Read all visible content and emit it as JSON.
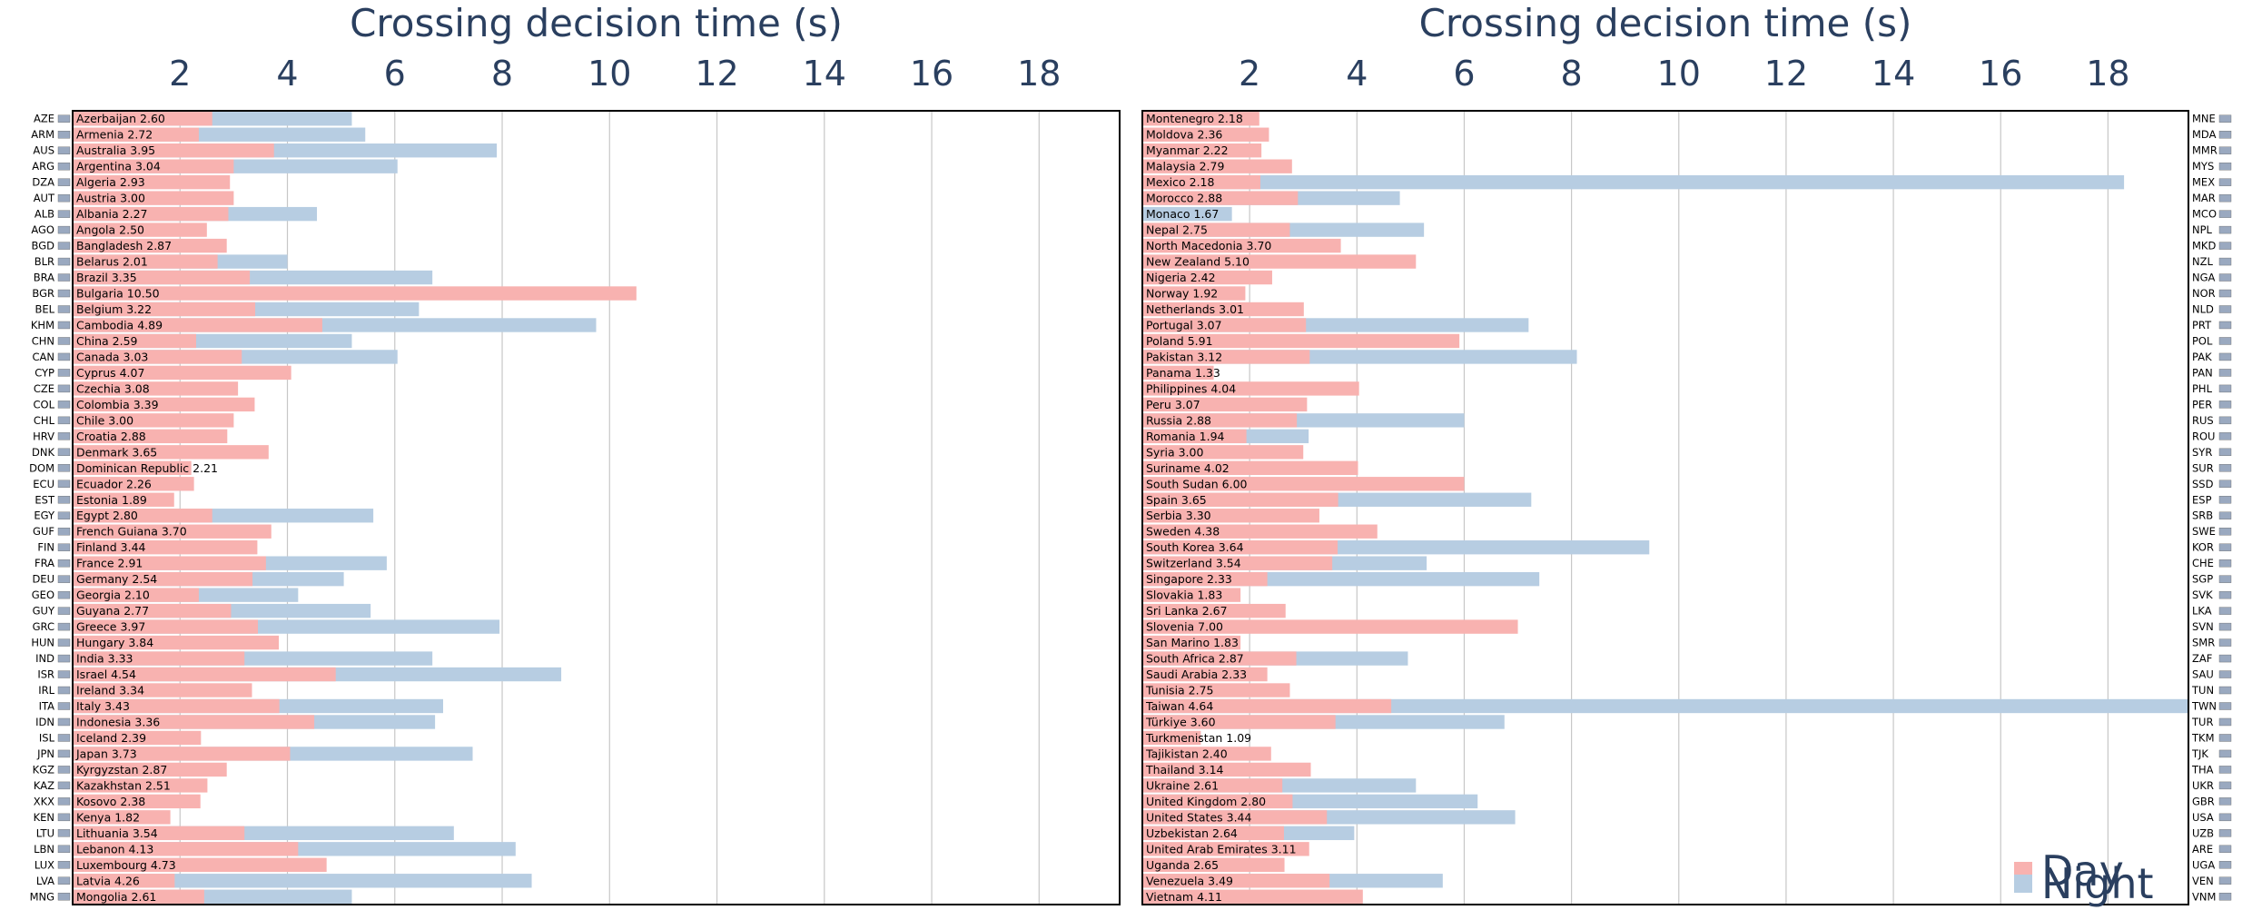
{
  "chart_data": [
    {
      "type": "bar",
      "orientation": "horizontal",
      "title": "Crossing decision time (s)",
      "xlim": [
        0,
        19.5
      ],
      "xticks": [
        2,
        4,
        6,
        8,
        10,
        12,
        14,
        16,
        18
      ],
      "grid": true,
      "side_labels": "left",
      "series_names": [
        "Day",
        "Night"
      ],
      "rows": [
        {
          "code": "AZE",
          "label": "Azerbaijan 2.60",
          "day": 2.6,
          "night": 5.2
        },
        {
          "code": "ARM",
          "label": "Armenia 2.72",
          "day": 2.35,
          "night": 5.45
        },
        {
          "code": "AUS",
          "label": "Australia 3.95",
          "day": 3.75,
          "night": 7.9
        },
        {
          "code": "ARG",
          "label": "Argentina 3.04",
          "day": 3.0,
          "night": 6.05
        },
        {
          "code": "DZA",
          "label": "Algeria 2.93",
          "day": 2.93,
          "night": null
        },
        {
          "code": "AUT",
          "label": "Austria 3.00",
          "day": 3.0,
          "night": null
        },
        {
          "code": "ALB",
          "label": "Albania 2.27",
          "day": 2.9,
          "night": 4.55
        },
        {
          "code": "AGO",
          "label": "Angola 2.50",
          "day": 2.5,
          "night": null
        },
        {
          "code": "BGD",
          "label": "Bangladesh 2.87",
          "day": 2.87,
          "night": null
        },
        {
          "code": "BLR",
          "label": "Belarus 2.01",
          "day": 2.7,
          "night": 4.0
        },
        {
          "code": "BRA",
          "label": "Brazil 3.35",
          "day": 3.3,
          "night": 6.7
        },
        {
          "code": "BGR",
          "label": "Bulgaria 10.50",
          "day": 10.5,
          "night": null
        },
        {
          "code": "BEL",
          "label": "Belgium 3.22",
          "day": 3.4,
          "night": 6.45
        },
        {
          "code": "KHM",
          "label": "Cambodia 4.89",
          "day": 4.65,
          "night": 9.75
        },
        {
          "code": "CHN",
          "label": "China 2.59",
          "day": 2.3,
          "night": 5.2
        },
        {
          "code": "CAN",
          "label": "Canada 3.03",
          "day": 3.15,
          "night": 6.05
        },
        {
          "code": "CYP",
          "label": "Cyprus 4.07",
          "day": 4.07,
          "night": null
        },
        {
          "code": "CZE",
          "label": "Czechia 3.08",
          "day": 3.08,
          "night": null
        },
        {
          "code": "COL",
          "label": "Colombia 3.39",
          "day": 3.39,
          "night": null
        },
        {
          "code": "CHL",
          "label": "Chile 3.00",
          "day": 3.0,
          "night": null
        },
        {
          "code": "HRV",
          "label": "Croatia 2.88",
          "day": 2.88,
          "night": null
        },
        {
          "code": "DNK",
          "label": "Denmark 3.65",
          "day": 3.65,
          "night": null
        },
        {
          "code": "DOM",
          "label": "Dominican Republic 2.21",
          "day": 2.21,
          "night": null
        },
        {
          "code": "ECU",
          "label": "Ecuador 2.26",
          "day": 2.26,
          "night": null
        },
        {
          "code": "EST",
          "label": "Estonia 1.89",
          "day": 1.89,
          "night": null
        },
        {
          "code": "EGY",
          "label": "Egypt 2.80",
          "day": 2.6,
          "night": 5.6
        },
        {
          "code": "GUF",
          "label": "French Guiana 3.70",
          "day": 3.7,
          "night": null
        },
        {
          "code": "FIN",
          "label": "Finland 3.44",
          "day": 3.44,
          "night": null
        },
        {
          "code": "FRA",
          "label": "France 2.91",
          "day": 3.6,
          "night": 5.85
        },
        {
          "code": "DEU",
          "label": "Germany 2.54",
          "day": 3.35,
          "night": 5.05
        },
        {
          "code": "GEO",
          "label": "Georgia 2.10",
          "day": 2.35,
          "night": 4.2
        },
        {
          "code": "GUY",
          "label": "Guyana 2.77",
          "day": 2.95,
          "night": 5.55
        },
        {
          "code": "GRC",
          "label": "Greece 3.97",
          "day": 3.45,
          "night": 7.95
        },
        {
          "code": "HUN",
          "label": "Hungary 3.84",
          "day": 3.84,
          "night": null
        },
        {
          "code": "IND",
          "label": "India 3.33",
          "day": 3.2,
          "night": 6.7
        },
        {
          "code": "ISR",
          "label": "Israel 4.54",
          "day": 4.9,
          "night": 9.1
        },
        {
          "code": "IRL",
          "label": "Ireland 3.34",
          "day": 3.34,
          "night": null
        },
        {
          "code": "ITA",
          "label": "Italy 3.43",
          "day": 3.85,
          "night": 6.9
        },
        {
          "code": "IDN",
          "label": "Indonesia 3.36",
          "day": 4.5,
          "night": 6.75
        },
        {
          "code": "ISL",
          "label": "Iceland 2.39",
          "day": 2.39,
          "night": null
        },
        {
          "code": "JPN",
          "label": "Japan 3.73",
          "day": 4.05,
          "night": 7.45
        },
        {
          "code": "KGZ",
          "label": "Kyrgyzstan 2.87",
          "day": 2.87,
          "night": null
        },
        {
          "code": "KAZ",
          "label": "Kazakhstan 2.51",
          "day": 2.51,
          "night": null
        },
        {
          "code": "XKX",
          "label": "Kosovo 2.38",
          "day": 2.38,
          "night": null
        },
        {
          "code": "KEN",
          "label": "Kenya 1.82",
          "day": 1.82,
          "night": null
        },
        {
          "code": "LTU",
          "label": "Lithuania 3.54",
          "day": 3.2,
          "night": 7.1
        },
        {
          "code": "LBN",
          "label": "Lebanon 4.13",
          "day": 4.2,
          "night": 8.25
        },
        {
          "code": "LUX",
          "label": "Luxembourg 4.73",
          "day": 4.73,
          "night": null
        },
        {
          "code": "LVA",
          "label": "Latvia 4.26",
          "day": 1.9,
          "night": 8.55
        },
        {
          "code": "MNG",
          "label": "Mongolia 2.61",
          "day": 2.45,
          "night": 5.2
        }
      ]
    },
    {
      "type": "bar",
      "orientation": "horizontal",
      "title": "Crossing decision time (s)",
      "xlim": [
        0,
        19.5
      ],
      "xticks": [
        2,
        4,
        6,
        8,
        10,
        12,
        14,
        16,
        18
      ],
      "grid": true,
      "side_labels": "right",
      "series_names": [
        "Day",
        "Night"
      ],
      "rows": [
        {
          "code": "MNE",
          "label": "Montenegro 2.18",
          "day": 2.18,
          "night": null
        },
        {
          "code": "MDA",
          "label": "Moldova 2.36",
          "day": 2.36,
          "night": null
        },
        {
          "code": "MMR",
          "label": "Myanmar 2.22",
          "day": 2.22,
          "night": null
        },
        {
          "code": "MYS",
          "label": "Malaysia 2.79",
          "day": 2.79,
          "night": null
        },
        {
          "code": "MEX",
          "label": "Mexico 2.18",
          "day": 2.2,
          "night": 18.3
        },
        {
          "code": "MAR",
          "label": "Morocco 2.88",
          "day": 2.9,
          "night": 4.8
        },
        {
          "code": "MCO",
          "label": "Monaco 1.67",
          "day": null,
          "night": 1.67
        },
        {
          "code": "NPL",
          "label": "Nepal 2.75",
          "day": 2.75,
          "night": 5.25
        },
        {
          "code": "MKD",
          "label": "North Macedonia 3.70",
          "day": 3.7,
          "night": null
        },
        {
          "code": "NZL",
          "label": "New Zealand 5.10",
          "day": 5.1,
          "night": null
        },
        {
          "code": "NGA",
          "label": "Nigeria 2.42",
          "day": 2.42,
          "night": null
        },
        {
          "code": "NOR",
          "label": "Norway 1.92",
          "day": 1.92,
          "night": null
        },
        {
          "code": "NLD",
          "label": "Netherlands 3.01",
          "day": 3.01,
          "night": null
        },
        {
          "code": "PRT",
          "label": "Portugal 3.07",
          "day": 3.05,
          "night": 7.2
        },
        {
          "code": "POL",
          "label": "Poland 5.91",
          "day": 5.91,
          "night": null
        },
        {
          "code": "PAK",
          "label": "Pakistan 3.12",
          "day": 3.12,
          "night": 8.1
        },
        {
          "code": "PAN",
          "label": "Panama 1.33",
          "day": 1.33,
          "night": null
        },
        {
          "code": "PHL",
          "label": "Philippines 4.04",
          "day": 4.04,
          "night": null
        },
        {
          "code": "PER",
          "label": "Peru 3.07",
          "day": 3.07,
          "night": null
        },
        {
          "code": "RUS",
          "label": "Russia 2.88",
          "day": 2.88,
          "night": 6.0
        },
        {
          "code": "ROU",
          "label": "Romania 1.94",
          "day": 1.94,
          "night": 3.1
        },
        {
          "code": "SYR",
          "label": "Syria 3.00",
          "day": 3.0,
          "night": null
        },
        {
          "code": "SUR",
          "label": "Suriname 4.02",
          "day": 4.02,
          "night": null
        },
        {
          "code": "SSD",
          "label": "South Sudan 6.00",
          "day": 6.0,
          "night": null
        },
        {
          "code": "ESP",
          "label": "Spain 3.65",
          "day": 3.65,
          "night": 7.25
        },
        {
          "code": "SRB",
          "label": "Serbia 3.30",
          "day": 3.3,
          "night": null
        },
        {
          "code": "SWE",
          "label": "Sweden 4.38",
          "day": 4.38,
          "night": null
        },
        {
          "code": "KOR",
          "label": "South Korea 3.64",
          "day": 3.64,
          "night": 9.45
        },
        {
          "code": "CHE",
          "label": "Switzerland 3.54",
          "day": 3.54,
          "night": 5.3
        },
        {
          "code": "SGP",
          "label": "Singapore 2.33",
          "day": 2.33,
          "night": 7.4
        },
        {
          "code": "SVK",
          "label": "Slovakia 1.83",
          "day": 1.83,
          "night": null
        },
        {
          "code": "LKA",
          "label": "Sri Lanka 2.67",
          "day": 2.67,
          "night": null
        },
        {
          "code": "SVN",
          "label": "Slovenia 7.00",
          "day": 7.0,
          "night": null
        },
        {
          "code": "SMR",
          "label": "San Marino 1.83",
          "day": 1.83,
          "night": null
        },
        {
          "code": "ZAF",
          "label": "South Africa 2.87",
          "day": 2.87,
          "night": 4.95
        },
        {
          "code": "SAU",
          "label": "Saudi Arabia 2.33",
          "day": 2.33,
          "night": null
        },
        {
          "code": "TUN",
          "label": "Tunisia 2.75",
          "day": 2.75,
          "night": null
        },
        {
          "code": "TWN",
          "label": "Taiwan 4.64",
          "day": 4.64,
          "night": 19.5
        },
        {
          "code": "TUR",
          "label": "Türkiye 3.60",
          "day": 3.6,
          "night": 6.75
        },
        {
          "code": "TKM",
          "label": "Turkmenistan 1.09",
          "day": 1.09,
          "night": null
        },
        {
          "code": "TJK",
          "label": "Tajikistan 2.40",
          "day": 2.4,
          "night": null
        },
        {
          "code": "THA",
          "label": "Thailand 3.14",
          "day": 3.14,
          "night": null
        },
        {
          "code": "UKR",
          "label": "Ukraine 2.61",
          "day": 2.61,
          "night": 5.1
        },
        {
          "code": "GBR",
          "label": "United Kingdom 2.80",
          "day": 2.8,
          "night": 6.25
        },
        {
          "code": "USA",
          "label": "United States 3.44",
          "day": 3.44,
          "night": 6.95
        },
        {
          "code": "UZB",
          "label": "Uzbekistan 2.64",
          "day": 2.64,
          "night": 3.95
        },
        {
          "code": "ARE",
          "label": "United Arab Emirates 3.11",
          "day": 3.11,
          "night": null
        },
        {
          "code": "UGA",
          "label": "Uganda 2.65",
          "day": 2.65,
          "night": null
        },
        {
          "code": "VEN",
          "label": "Venezuela 3.49",
          "day": 3.49,
          "night": 5.6
        },
        {
          "code": "VNM",
          "label": "Vietnam 4.11",
          "day": 4.11,
          "night": null
        }
      ]
    }
  ],
  "legend": {
    "items": [
      {
        "label": "Day",
        "color": "#f8b2b0"
      },
      {
        "label": "Night",
        "color": "#b7cde2"
      }
    ],
    "placement": "bottom-right"
  },
  "colors": {
    "day": "#f8b2b0",
    "night": "#b7cde2",
    "title": "#2a3f5f",
    "grid": "#c7c7c7",
    "frame": "#000000"
  }
}
